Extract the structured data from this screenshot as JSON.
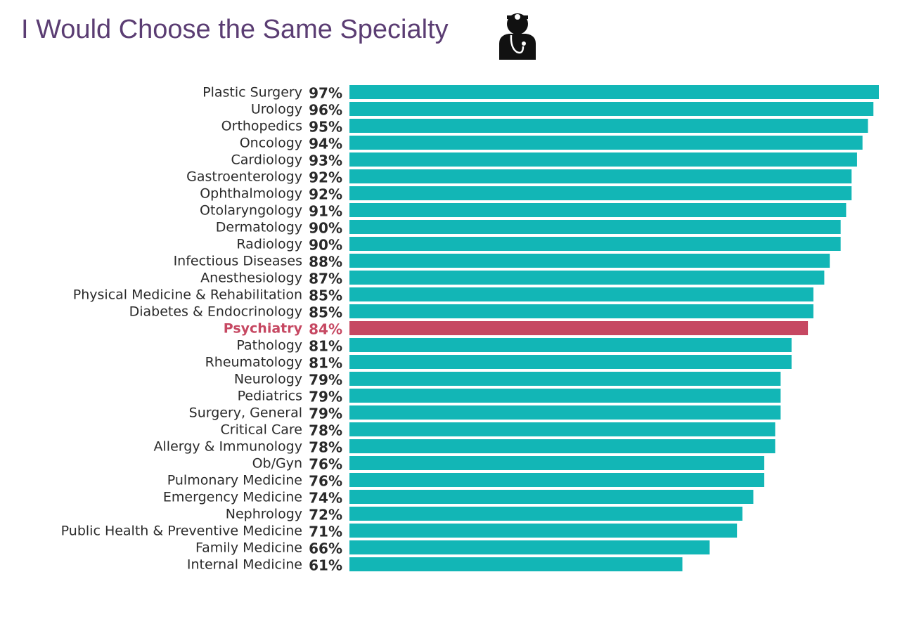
{
  "chart_data": {
    "type": "bar",
    "orientation": "horizontal",
    "title": "I Would Choose the Same Specialty",
    "categories": [
      "Plastic Surgery",
      "Urology",
      "Orthopedics",
      "Oncology",
      "Cardiology",
      "Gastroenterology",
      "Ophthalmology",
      "Otolaryngology",
      "Dermatology",
      "Radiology",
      "Infectious Diseases",
      "Anesthesiology",
      "Physical Medicine & Rehabilitation",
      "Diabetes & Endocrinology",
      "Psychiatry",
      "Pathology",
      "Rheumatology",
      "Neurology",
      "Pediatrics",
      "Surgery, General",
      "Critical Care",
      "Allergy & Immunology",
      "Ob/Gyn",
      "Pulmonary Medicine",
      "Emergency Medicine",
      "Nephrology",
      "Public Health & Preventive Medicine",
      "Family Medicine",
      "Internal Medicine"
    ],
    "values": [
      97,
      96,
      95,
      94,
      93,
      92,
      92,
      91,
      90,
      90,
      88,
      87,
      85,
      85,
      84,
      81,
      81,
      79,
      79,
      79,
      78,
      78,
      76,
      76,
      74,
      72,
      71,
      66,
      61
    ],
    "value_labels": [
      "97%",
      "96%",
      "95%",
      "94%",
      "93%",
      "92%",
      "92%",
      "91%",
      "90%",
      "90%",
      "88%",
      "87%",
      "85%",
      "85%",
      "84%",
      "81%",
      "81%",
      "79%",
      "79%",
      "79%",
      "78%",
      "78%",
      "76%",
      "76%",
      "74%",
      "72%",
      "71%",
      "66%",
      "61%"
    ],
    "colors": [
      "#12b6b6",
      "#12b6b6",
      "#12b6b6",
      "#12b6b6",
      "#12b6b6",
      "#12b6b6",
      "#12b6b6",
      "#12b6b6",
      "#12b6b6",
      "#12b6b6",
      "#12b6b6",
      "#12b6b6",
      "#12b6b6",
      "#12b6b6",
      "#c64862",
      "#12b6b6",
      "#12b6b6",
      "#12b6b6",
      "#12b6b6",
      "#12b6b6",
      "#12b6b6",
      "#12b6b6",
      "#12b6b6",
      "#12b6b6",
      "#12b6b6",
      "#12b6b6",
      "#12b6b6",
      "#12b6b6",
      "#12b6b6"
    ],
    "grid": false
  }
}
